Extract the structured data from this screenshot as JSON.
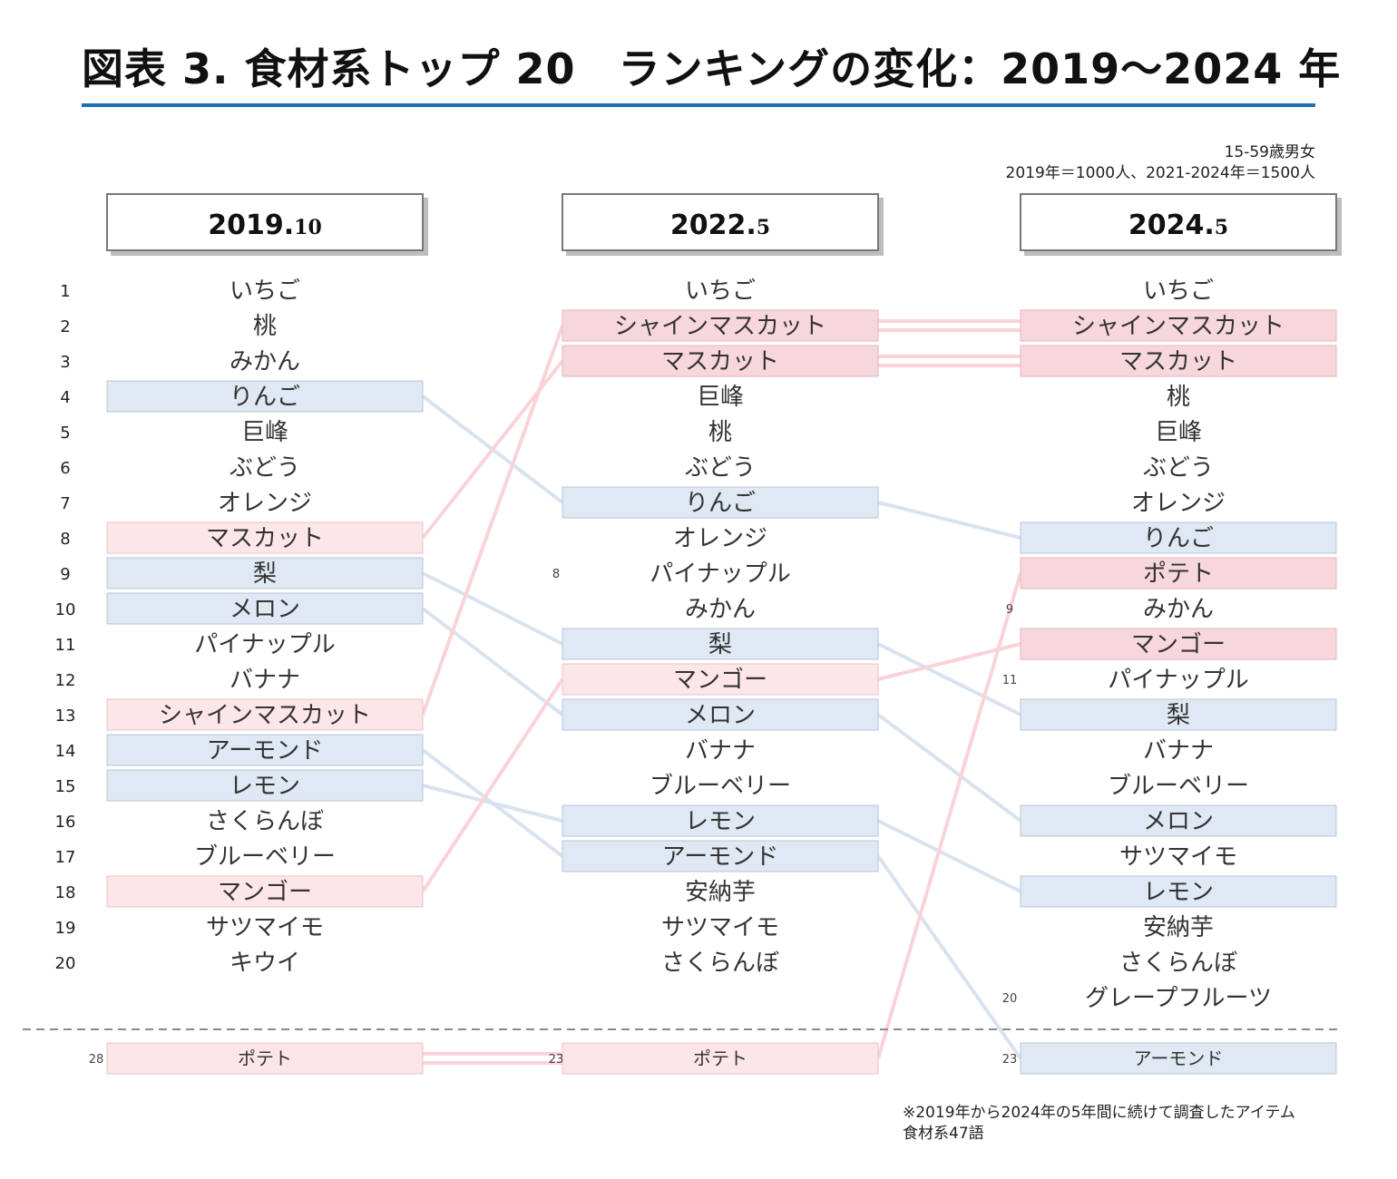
{
  "title": "図表 3. 食材系トップ 20　ランキングの変化：2019〜2024 年",
  "sample_note_line1": "15-59歳男女",
  "sample_note_line2": "2019年＝1000人、2021-2024年＝1500人",
  "footnote_line1": "※2019年から2024年の5年間に続けて調査したアイテム",
  "footnote_line2": "食材系47語",
  "colors": {
    "rank_up": "#f8d7dc",
    "rank_down": "#dfe8f3",
    "title_rule": "#1f6fb3"
  },
  "chart_data": {
    "type": "table",
    "columns": [
      {
        "label_main": "2019.",
        "label_sub": "10",
        "items": [
          {
            "rank": "1",
            "name": "いちご",
            "status": "none"
          },
          {
            "rank": "2",
            "name": "桃",
            "status": "none"
          },
          {
            "rank": "3",
            "name": "みかん",
            "status": "none"
          },
          {
            "rank": "4",
            "name": "りんご",
            "status": "down"
          },
          {
            "rank": "5",
            "name": "巨峰",
            "status": "none"
          },
          {
            "rank": "6",
            "name": "ぶどう",
            "status": "none"
          },
          {
            "rank": "7",
            "name": "オレンジ",
            "status": "none"
          },
          {
            "rank": "8",
            "name": "マスカット",
            "status": "up"
          },
          {
            "rank": "9",
            "name": "梨",
            "status": "down"
          },
          {
            "rank": "10",
            "name": "メロン",
            "status": "down"
          },
          {
            "rank": "11",
            "name": "パイナップル",
            "status": "none"
          },
          {
            "rank": "12",
            "name": "バナナ",
            "status": "none"
          },
          {
            "rank": "13",
            "name": "シャインマスカット",
            "status": "up"
          },
          {
            "rank": "14",
            "name": "アーモンド",
            "status": "down"
          },
          {
            "rank": "15",
            "name": "レモン",
            "status": "down"
          },
          {
            "rank": "16",
            "name": "さくらんぼ",
            "status": "none"
          },
          {
            "rank": "17",
            "name": "ブルーベリー",
            "status": "none"
          },
          {
            "rank": "18",
            "name": "マンゴー",
            "status": "up"
          },
          {
            "rank": "19",
            "name": "サツマイモ",
            "status": "none"
          },
          {
            "rank": "20",
            "name": "キウイ",
            "status": "none"
          }
        ],
        "outside": {
          "rank": "28",
          "name": "ポテト",
          "status": "up"
        }
      },
      {
        "label_main": "2022.",
        "label_sub": "5",
        "items": [
          {
            "rank": "",
            "name": "いちご",
            "status": "none"
          },
          {
            "rank": "",
            "name": "シャインマスカット",
            "status": "up"
          },
          {
            "rank": "",
            "name": "マスカット",
            "status": "up"
          },
          {
            "rank": "",
            "name": "巨峰",
            "status": "none"
          },
          {
            "rank": "",
            "name": "桃",
            "status": "none"
          },
          {
            "rank": "",
            "name": "ぶどう",
            "status": "none"
          },
          {
            "rank": "",
            "name": "りんご",
            "status": "down"
          },
          {
            "rank": "",
            "name": "オレンジ",
            "status": "none"
          },
          {
            "rank": "8",
            "name": "パイナップル",
            "status": "none"
          },
          {
            "rank": "",
            "name": "みかん",
            "status": "none"
          },
          {
            "rank": "",
            "name": "梨",
            "status": "down"
          },
          {
            "rank": "",
            "name": "マンゴー",
            "status": "up"
          },
          {
            "rank": "",
            "name": "メロン",
            "status": "down"
          },
          {
            "rank": "",
            "name": "バナナ",
            "status": "none"
          },
          {
            "rank": "",
            "name": "ブルーベリー",
            "status": "none"
          },
          {
            "rank": "",
            "name": "レモン",
            "status": "down"
          },
          {
            "rank": "",
            "name": "アーモンド",
            "status": "down"
          },
          {
            "rank": "",
            "name": "安納芋",
            "status": "none"
          },
          {
            "rank": "",
            "name": "サツマイモ",
            "status": "none"
          },
          {
            "rank": "",
            "name": "さくらんぼ",
            "status": "none"
          }
        ],
        "outside": {
          "rank": "23",
          "name": "ポテト",
          "status": "up"
        }
      },
      {
        "label_main": "2024.",
        "label_sub": "5",
        "items": [
          {
            "rank": "",
            "name": "いちご",
            "status": "none"
          },
          {
            "rank": "",
            "name": "シャインマスカット",
            "status": "up"
          },
          {
            "rank": "",
            "name": "マスカット",
            "status": "up"
          },
          {
            "rank": "",
            "name": "桃",
            "status": "none"
          },
          {
            "rank": "",
            "name": "巨峰",
            "status": "none"
          },
          {
            "rank": "",
            "name": "ぶどう",
            "status": "none"
          },
          {
            "rank": "",
            "name": "オレンジ",
            "status": "none"
          },
          {
            "rank": "",
            "name": "りんご",
            "status": "down"
          },
          {
            "rank": "",
            "name": "ポテト",
            "status": "up"
          },
          {
            "rank": "9",
            "name": "みかん",
            "status": "none"
          },
          {
            "rank": "",
            "name": "マンゴー",
            "status": "up"
          },
          {
            "rank": "11",
            "name": "パイナップル",
            "status": "none"
          },
          {
            "rank": "",
            "name": "梨",
            "status": "down"
          },
          {
            "rank": "",
            "name": "バナナ",
            "status": "none"
          },
          {
            "rank": "",
            "name": "ブルーベリー",
            "status": "none"
          },
          {
            "rank": "",
            "name": "メロン",
            "status": "down"
          },
          {
            "rank": "",
            "name": "サツマイモ",
            "status": "none"
          },
          {
            "rank": "",
            "name": "レモン",
            "status": "down"
          },
          {
            "rank": "",
            "name": "安納芋",
            "status": "none"
          },
          {
            "rank": "",
            "name": "さくらんぼ",
            "status": "none"
          },
          {
            "rank": "20",
            "name": "グレープフルーツ",
            "status": "none"
          }
        ],
        "outside": {
          "rank": "23",
          "name": "アーモンド",
          "status": "down"
        }
      }
    ]
  }
}
